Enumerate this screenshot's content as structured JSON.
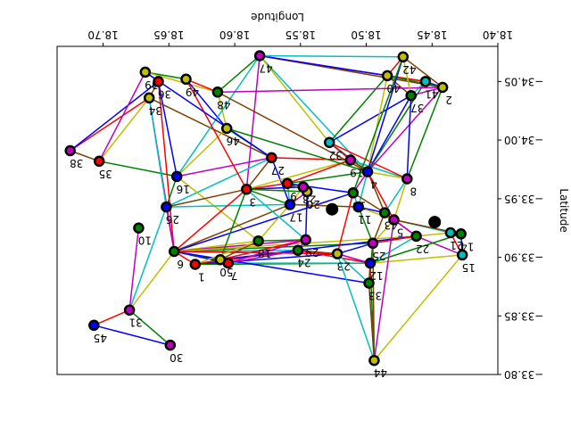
{
  "chart_data": {
    "type": "scatter",
    "subtype": "network-graph",
    "rendering": "rotated-180",
    "xlabel": "Longitude",
    "ylabel": "Latitude",
    "xlim": [
      18.4,
      18.735
    ],
    "ylim": [
      -34.08,
      -33.8
    ],
    "xticks": [
      "18.40",
      "18.45",
      "18.50",
      "18.55",
      "18.60",
      "18.65",
      "18.70"
    ],
    "yticks": [
      "−34.05",
      "−34.00",
      "−33.95",
      "−33.90",
      "−33.85",
      "−33.80"
    ],
    "xtick_values": [
      18.4,
      18.45,
      18.5,
      18.55,
      18.6,
      18.65,
      18.7
    ],
    "ytick_values": [
      -34.05,
      -34.0,
      -33.95,
      -33.9,
      -33.85,
      -33.8
    ],
    "grid": false,
    "edge_colors": [
      "#ff0000",
      "#0000ff",
      "#008000",
      "#bfbf00",
      "#bf00bf",
      "#00bfbf",
      "#7f3f00"
    ],
    "depots": [
      {
        "lon": 18.448,
        "lat": -33.93
      },
      {
        "lon": 18.526,
        "lat": -33.941
      }
    ],
    "nodes": [
      {
        "id": "1",
        "lon": 18.63,
        "lat": -33.894,
        "color": "#ff0000"
      },
      {
        "id": "2",
        "lon": 18.442,
        "lat": -34.045,
        "color": "#bfbf00"
      },
      {
        "id": "3",
        "lon": 18.591,
        "lat": -33.958,
        "color": "#ff0000"
      },
      {
        "id": "4",
        "lon": 18.499,
        "lat": -33.973,
        "color": "#0000ff"
      },
      {
        "id": "5",
        "lon": 18.479,
        "lat": -33.932,
        "color": "#bf00bf"
      },
      {
        "id": "6",
        "lon": 18.646,
        "lat": -33.905,
        "color": "#008000"
      },
      {
        "id": "7",
        "lon": 18.605,
        "lat": -33.895,
        "color": "#ff0000"
      },
      {
        "id": "8",
        "lon": 18.469,
        "lat": -33.967,
        "color": "#bf00bf"
      },
      {
        "id": "9",
        "lon": 18.56,
        "lat": -33.963,
        "color": "#ff0000"
      },
      {
        "id": "10",
        "lon": 18.673,
        "lat": -33.925,
        "color": "#008000"
      },
      {
        "id": "11",
        "lon": 18.506,
        "lat": -33.943,
        "color": "#0000ff"
      },
      {
        "id": "12",
        "lon": 18.497,
        "lat": -33.895,
        "color": "#0000ff"
      },
      {
        "id": "13",
        "lon": 18.51,
        "lat": -33.955,
        "color": "#008000"
      },
      {
        "id": "14",
        "lon": 18.428,
        "lat": -33.92,
        "color": "#008000"
      },
      {
        "id": "15",
        "lon": 18.427,
        "lat": -33.902,
        "color": "#00bfbf"
      },
      {
        "id": "16",
        "lon": 18.644,
        "lat": -33.969,
        "color": "#0000ff"
      },
      {
        "id": "17",
        "lon": 18.558,
        "lat": -33.945,
        "color": "#0000ff"
      },
      {
        "id": "18",
        "lon": 18.582,
        "lat": -33.914,
        "color": "#008000"
      },
      {
        "id": "19",
        "lon": 18.512,
        "lat": -33.983,
        "color": "#bf00bf"
      },
      {
        "id": "20",
        "lon": 18.545,
        "lat": -33.956,
        "color": "#bfbf00"
      },
      {
        "id": "21",
        "lon": 18.436,
        "lat": -33.921,
        "color": "#00bfbf"
      },
      {
        "id": "22",
        "lon": 18.462,
        "lat": -33.918,
        "color": "#008000"
      },
      {
        "id": "23",
        "lon": 18.522,
        "lat": -33.903,
        "color": "#bfbf00"
      },
      {
        "id": "24",
        "lon": 18.552,
        "lat": -33.906,
        "color": "#008000"
      },
      {
        "id": "25",
        "lon": 18.495,
        "lat": -33.912,
        "color": "#bf00bf"
      },
      {
        "id": "26",
        "lon": 18.652,
        "lat": -33.943,
        "color": "#0000ff"
      },
      {
        "id": "27",
        "lon": 18.572,
        "lat": -33.985,
        "color": "#ff0000"
      },
      {
        "id": "28",
        "lon": 18.548,
        "lat": -33.96,
        "color": "#bf00bf"
      },
      {
        "id": "29",
        "lon": 18.546,
        "lat": -33.915,
        "color": "#bf00bf"
      },
      {
        "id": "30",
        "lon": 18.649,
        "lat": -33.825,
        "color": "#bf00bf"
      },
      {
        "id": "31",
        "lon": 18.68,
        "lat": -33.855,
        "color": "#bf00bf"
      },
      {
        "id": "32",
        "lon": 18.528,
        "lat": -33.998,
        "color": "#00bfbf"
      },
      {
        "id": "33",
        "lon": 18.498,
        "lat": -33.878,
        "color": "#008000"
      },
      {
        "id": "34",
        "lon": 18.665,
        "lat": -34.036,
        "color": "#bfbf00"
      },
      {
        "id": "35",
        "lon": 18.703,
        "lat": -33.982,
        "color": "#ff0000"
      },
      {
        "id": "36",
        "lon": 18.658,
        "lat": -34.05,
        "color": "#ff0000"
      },
      {
        "id": "37",
        "lon": 18.466,
        "lat": -34.038,
        "color": "#008000"
      },
      {
        "id": "38",
        "lon": 18.725,
        "lat": -33.991,
        "color": "#bf00bf"
      },
      {
        "id": "39",
        "lon": 18.668,
        "lat": -34.058,
        "color": "#bfbf00"
      },
      {
        "id": "40",
        "lon": 18.484,
        "lat": -34.055,
        "color": "#bfbf00"
      },
      {
        "id": "41",
        "lon": 18.455,
        "lat": -34.05,
        "color": "#00bfbf"
      },
      {
        "id": "42",
        "lon": 18.472,
        "lat": -34.071,
        "color": "#bfbf00"
      },
      {
        "id": "43",
        "lon": 18.486,
        "lat": -33.938,
        "color": "#008000"
      },
      {
        "id": "44",
        "lon": 18.494,
        "lat": -33.812,
        "color": "#bfbf00"
      },
      {
        "id": "45",
        "lon": 18.707,
        "lat": -33.842,
        "color": "#0000ff"
      },
      {
        "id": "46",
        "lon": 18.606,
        "lat": -34.01,
        "color": "#bfbf00"
      },
      {
        "id": "47",
        "lon": 18.581,
        "lat": -34.072,
        "color": "#bf00bf"
      },
      {
        "id": "48",
        "lon": 18.613,
        "lat": -34.041,
        "color": "#008000"
      },
      {
        "id": "49",
        "lon": 18.637,
        "lat": -34.052,
        "color": "#bfbf00"
      },
      {
        "id": "50",
        "lon": 18.611,
        "lat": -33.898,
        "color": "#bfbf00"
      }
    ],
    "edges": [
      [
        "45",
        "31"
      ],
      [
        "45",
        "30"
      ],
      [
        "30",
        "31"
      ],
      [
        "31",
        "6"
      ],
      [
        "31",
        "10"
      ],
      [
        "31",
        "26"
      ],
      [
        "38",
        "35"
      ],
      [
        "38",
        "34"
      ],
      [
        "38",
        "36"
      ],
      [
        "35",
        "16"
      ],
      [
        "35",
        "34"
      ],
      [
        "35",
        "39"
      ],
      [
        "36",
        "39"
      ],
      [
        "36",
        "34"
      ],
      [
        "36",
        "6"
      ],
      [
        "36",
        "16"
      ],
      [
        "39",
        "49"
      ],
      [
        "39",
        "48"
      ],
      [
        "34",
        "6"
      ],
      [
        "34",
        "26"
      ],
      [
        "34",
        "27"
      ],
      [
        "49",
        "48"
      ],
      [
        "49",
        "46"
      ],
      [
        "48",
        "47"
      ],
      [
        "48",
        "46"
      ],
      [
        "47",
        "3"
      ],
      [
        "47",
        "4"
      ],
      [
        "47",
        "2"
      ],
      [
        "47",
        "41"
      ],
      [
        "47",
        "40"
      ],
      [
        "46",
        "27"
      ],
      [
        "46",
        "16"
      ],
      [
        "27",
        "16"
      ],
      [
        "27",
        "26"
      ],
      [
        "27",
        "3"
      ],
      [
        "27",
        "19"
      ],
      [
        "27",
        "17"
      ],
      [
        "16",
        "26"
      ],
      [
        "16",
        "18"
      ],
      [
        "26",
        "6"
      ],
      [
        "26",
        "17"
      ],
      [
        "26",
        "3"
      ],
      [
        "6",
        "1"
      ],
      [
        "6",
        "7"
      ],
      [
        "6",
        "50"
      ],
      [
        "6",
        "18"
      ],
      [
        "6",
        "29"
      ],
      [
        "6",
        "24"
      ],
      [
        "6",
        "17"
      ],
      [
        "6",
        "3"
      ],
      [
        "6",
        "13"
      ],
      [
        "6",
        "25"
      ],
      [
        "6",
        "22"
      ],
      [
        "6",
        "23"
      ],
      [
        "1",
        "7"
      ],
      [
        "1",
        "50"
      ],
      [
        "1",
        "24"
      ],
      [
        "1",
        "23"
      ],
      [
        "1",
        "12"
      ],
      [
        "7",
        "50"
      ],
      [
        "7",
        "24"
      ],
      [
        "7",
        "12"
      ],
      [
        "50",
        "18"
      ],
      [
        "50",
        "29"
      ],
      [
        "50",
        "24"
      ],
      [
        "18",
        "29"
      ],
      [
        "18",
        "17"
      ],
      [
        "29",
        "24"
      ],
      [
        "29",
        "3"
      ],
      [
        "24",
        "23"
      ],
      [
        "24",
        "12"
      ],
      [
        "24",
        "22"
      ],
      [
        "17",
        "3"
      ],
      [
        "17",
        "28"
      ],
      [
        "17",
        "20"
      ],
      [
        "17",
        "9"
      ],
      [
        "17",
        "11"
      ],
      [
        "3",
        "9"
      ],
      [
        "3",
        "28"
      ],
      [
        "3",
        "20"
      ],
      [
        "3",
        "19"
      ],
      [
        "28",
        "20"
      ],
      [
        "28",
        "9"
      ],
      [
        "20",
        "9"
      ],
      [
        "9",
        "19"
      ],
      [
        "9",
        "13"
      ],
      [
        "9",
        "4"
      ],
      [
        "19",
        "4"
      ],
      [
        "19",
        "32"
      ],
      [
        "19",
        "8"
      ],
      [
        "32",
        "4"
      ],
      [
        "32",
        "8"
      ],
      [
        "32",
        "37"
      ],
      [
        "32",
        "40"
      ],
      [
        "4",
        "8"
      ],
      [
        "4",
        "13"
      ],
      [
        "4",
        "11"
      ],
      [
        "4",
        "43"
      ],
      [
        "4",
        "5"
      ],
      [
        "4",
        "37"
      ],
      [
        "4",
        "41"
      ],
      [
        "4",
        "40"
      ],
      [
        "4",
        "2"
      ],
      [
        "13",
        "11"
      ],
      [
        "13",
        "43"
      ],
      [
        "13",
        "23"
      ],
      [
        "11",
        "43"
      ],
      [
        "11",
        "25"
      ],
      [
        "11",
        "5"
      ],
      [
        "43",
        "5"
      ],
      [
        "43",
        "8"
      ],
      [
        "43",
        "25"
      ],
      [
        "43",
        "22"
      ],
      [
        "8",
        "37"
      ],
      [
        "8",
        "2"
      ],
      [
        "8",
        "5"
      ],
      [
        "37",
        "2"
      ],
      [
        "37",
        "41"
      ],
      [
        "37",
        "40"
      ],
      [
        "41",
        "40"
      ],
      [
        "41",
        "2"
      ],
      [
        "40",
        "2"
      ],
      [
        "5",
        "25"
      ],
      [
        "5",
        "22"
      ],
      [
        "5",
        "21"
      ],
      [
        "5",
        "14"
      ],
      [
        "25",
        "22"
      ],
      [
        "25",
        "23"
      ],
      [
        "25",
        "33"
      ],
      [
        "22",
        "21"
      ],
      [
        "22",
        "15"
      ],
      [
        "22",
        "12"
      ],
      [
        "21",
        "14"
      ],
      [
        "21",
        "15"
      ],
      [
        "14",
        "15"
      ],
      [
        "14",
        "12"
      ],
      [
        "15",
        "12"
      ],
      [
        "12",
        "23"
      ],
      [
        "23",
        "33"
      ],
      [
        "33",
        "44"
      ],
      [
        "33",
        "12"
      ],
      [
        "33",
        "6"
      ],
      [
        "44",
        "12"
      ],
      [
        "44",
        "15"
      ],
      [
        "44",
        "5"
      ],
      [
        "44",
        "23"
      ],
      [
        "44",
        "25"
      ],
      [
        "23",
        "6"
      ],
      [
        "29",
        "20"
      ],
      [
        "50",
        "3"
      ],
      [
        "1",
        "18"
      ],
      [
        "7",
        "29"
      ],
      [
        "16",
        "47"
      ],
      [
        "48",
        "4"
      ],
      [
        "49",
        "3"
      ],
      [
        "39",
        "27"
      ],
      [
        "46",
        "4"
      ],
      [
        "47",
        "32"
      ],
      [
        "48",
        "2"
      ],
      [
        "42",
        "47"
      ],
      [
        "42",
        "2"
      ],
      [
        "42",
        "40"
      ],
      [
        "42",
        "4"
      ],
      [
        "42",
        "13"
      ],
      [
        "42",
        "37"
      ]
    ]
  }
}
